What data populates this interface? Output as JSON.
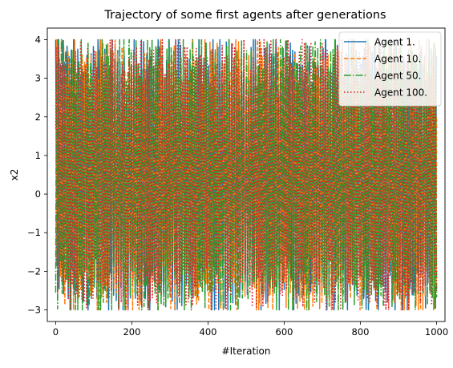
{
  "chart_data": {
    "type": "line",
    "title": "Trajectory of some first agents after generations",
    "xlabel": "#Iteration",
    "ylabel": "x2",
    "xlim": [
      -22,
      1022
    ],
    "ylim": [
      -3.3,
      4.3
    ],
    "xticks": [
      0,
      200,
      400,
      600,
      800,
      1000
    ],
    "yticks": [
      -3,
      -2,
      -1,
      0,
      1,
      2,
      3,
      4
    ],
    "grid": false,
    "legend_position": "top-right",
    "x_start": 0,
    "x_end": 1000,
    "value_range": [
      -3.0,
      4.0
    ],
    "series": [
      {
        "name": "Agent 1.",
        "color": "#1f77b4",
        "dash": "solid"
      },
      {
        "name": "Agent 10.",
        "color": "#ff7f0e",
        "dash": "dashed"
      },
      {
        "name": "Agent 50.",
        "color": "#2ca02c",
        "dash": "dashdot"
      },
      {
        "name": "Agent 100.",
        "color": "#d62728",
        "dash": "dotted"
      }
    ]
  }
}
